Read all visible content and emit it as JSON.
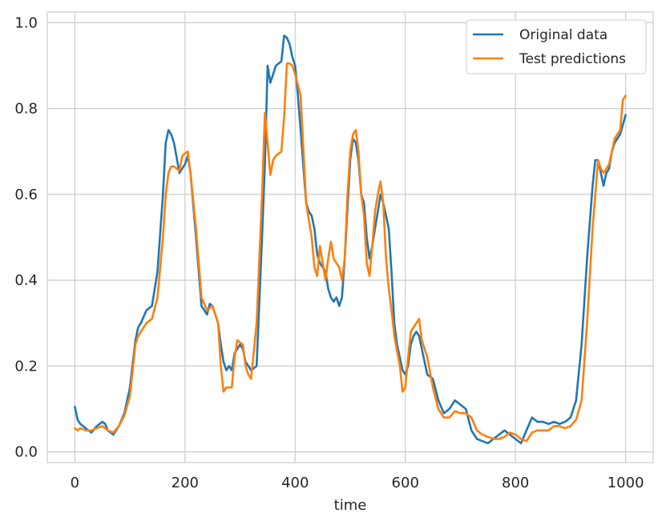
{
  "chart_data": {
    "type": "line",
    "title": "",
    "xlabel": "time",
    "ylabel": "",
    "xlim": [
      -50,
      1050
    ],
    "ylim": [
      -0.025,
      1.025
    ],
    "xticks": [
      0,
      200,
      400,
      600,
      800,
      1000
    ],
    "xtick_labels": [
      "0",
      "200",
      "400",
      "600",
      "800",
      "1000"
    ],
    "yticks": [
      0.0,
      0.2,
      0.4,
      0.6,
      0.8,
      1.0
    ],
    "ytick_labels": [
      "0.0",
      "0.2",
      "0.4",
      "0.6",
      "0.8",
      "1.0"
    ],
    "grid": true,
    "legend_position": "top-right",
    "series": [
      {
        "name": "Original data",
        "color": "#1f77b4",
        "x": [
          0,
          5,
          10,
          20,
          30,
          40,
          50,
          55,
          60,
          70,
          80,
          90,
          100,
          110,
          115,
          120,
          130,
          140,
          150,
          160,
          165,
          170,
          175,
          180,
          190,
          200,
          205,
          210,
          220,
          230,
          240,
          245,
          250,
          260,
          265,
          270,
          275,
          280,
          285,
          290,
          300,
          305,
          310,
          320,
          330,
          340,
          345,
          350,
          355,
          360,
          365,
          375,
          380,
          385,
          390,
          395,
          400,
          405,
          410,
          420,
          425,
          430,
          435,
          440,
          445,
          450,
          455,
          460,
          465,
          470,
          475,
          480,
          485,
          490,
          500,
          505,
          510,
          515,
          520,
          525,
          530,
          535,
          540,
          545,
          550,
          555,
          560,
          565,
          570,
          575,
          580,
          585,
          590,
          595,
          600,
          605,
          610,
          615,
          620,
          625,
          630,
          640,
          650,
          660,
          670,
          680,
          690,
          700,
          710,
          720,
          730,
          740,
          750,
          760,
          770,
          780,
          790,
          800,
          810,
          820,
          830,
          840,
          850,
          860,
          870,
          880,
          890,
          900,
          910,
          920,
          930,
          940,
          945,
          950,
          955,
          960,
          965,
          970,
          975,
          980,
          990,
          1000
        ],
        "y": [
          0.105,
          0.075,
          0.065,
          0.055,
          0.045,
          0.06,
          0.07,
          0.065,
          0.05,
          0.04,
          0.06,
          0.09,
          0.15,
          0.26,
          0.29,
          0.3,
          0.33,
          0.34,
          0.42,
          0.6,
          0.72,
          0.75,
          0.74,
          0.72,
          0.65,
          0.67,
          0.69,
          0.65,
          0.5,
          0.34,
          0.32,
          0.345,
          0.34,
          0.3,
          0.25,
          0.21,
          0.19,
          0.2,
          0.19,
          0.23,
          0.25,
          0.24,
          0.21,
          0.19,
          0.2,
          0.5,
          0.67,
          0.9,
          0.86,
          0.88,
          0.9,
          0.91,
          0.97,
          0.965,
          0.95,
          0.92,
          0.9,
          0.83,
          0.75,
          0.58,
          0.56,
          0.55,
          0.52,
          0.46,
          0.44,
          0.43,
          0.42,
          0.38,
          0.36,
          0.35,
          0.36,
          0.34,
          0.36,
          0.45,
          0.68,
          0.73,
          0.72,
          0.68,
          0.6,
          0.58,
          0.5,
          0.45,
          0.48,
          0.52,
          0.56,
          0.6,
          0.58,
          0.55,
          0.52,
          0.42,
          0.3,
          0.25,
          0.22,
          0.19,
          0.18,
          0.2,
          0.25,
          0.27,
          0.28,
          0.27,
          0.24,
          0.18,
          0.17,
          0.12,
          0.09,
          0.1,
          0.12,
          0.11,
          0.1,
          0.05,
          0.03,
          0.025,
          0.02,
          0.03,
          0.04,
          0.05,
          0.04,
          0.03,
          0.02,
          0.05,
          0.08,
          0.07,
          0.07,
          0.065,
          0.07,
          0.065,
          0.07,
          0.08,
          0.12,
          0.25,
          0.45,
          0.62,
          0.68,
          0.68,
          0.65,
          0.62,
          0.65,
          0.66,
          0.7,
          0.72,
          0.74,
          0.785
        ]
      },
      {
        "name": "Test predictions",
        "color": "#ff7f0e",
        "x": [
          0,
          5,
          10,
          20,
          30,
          40,
          50,
          60,
          70,
          80,
          90,
          100,
          110,
          115,
          120,
          130,
          140,
          150,
          160,
          165,
          170,
          175,
          180,
          190,
          195,
          200,
          205,
          210,
          220,
          230,
          240,
          250,
          260,
          265,
          270,
          275,
          280,
          285,
          290,
          295,
          300,
          305,
          310,
          315,
          320,
          330,
          340,
          345,
          350,
          355,
          360,
          365,
          375,
          380,
          385,
          390,
          395,
          400,
          410,
          420,
          430,
          435,
          440,
          445,
          450,
          455,
          460,
          465,
          470,
          475,
          480,
          485,
          490,
          495,
          500,
          505,
          510,
          515,
          520,
          525,
          530,
          535,
          540,
          545,
          550,
          555,
          560,
          565,
          570,
          575,
          580,
          590,
          595,
          600,
          605,
          610,
          615,
          620,
          625,
          630,
          640,
          650,
          660,
          670,
          680,
          690,
          700,
          710,
          720,
          730,
          740,
          750,
          760,
          770,
          780,
          790,
          800,
          810,
          820,
          830,
          840,
          850,
          860,
          870,
          880,
          890,
          900,
          910,
          920,
          930,
          940,
          945,
          950,
          955,
          960,
          965,
          970,
          975,
          980,
          990,
          995,
          1000
        ],
        "y": [
          0.055,
          0.05,
          0.055,
          0.05,
          0.05,
          0.055,
          0.06,
          0.05,
          0.045,
          0.06,
          0.085,
          0.13,
          0.25,
          0.27,
          0.28,
          0.3,
          0.31,
          0.36,
          0.5,
          0.6,
          0.65,
          0.665,
          0.665,
          0.655,
          0.69,
          0.695,
          0.7,
          0.65,
          0.52,
          0.36,
          0.33,
          0.34,
          0.3,
          0.2,
          0.14,
          0.15,
          0.15,
          0.15,
          0.22,
          0.26,
          0.255,
          0.25,
          0.2,
          0.18,
          0.17,
          0.3,
          0.6,
          0.79,
          0.72,
          0.645,
          0.68,
          0.69,
          0.7,
          0.78,
          0.905,
          0.905,
          0.9,
          0.88,
          0.83,
          0.58,
          0.5,
          0.43,
          0.41,
          0.48,
          0.44,
          0.4,
          0.45,
          0.49,
          0.45,
          0.44,
          0.43,
          0.4,
          0.45,
          0.6,
          0.7,
          0.74,
          0.75,
          0.7,
          0.6,
          0.55,
          0.44,
          0.41,
          0.48,
          0.56,
          0.6,
          0.63,
          0.58,
          0.45,
          0.38,
          0.33,
          0.27,
          0.2,
          0.14,
          0.15,
          0.22,
          0.28,
          0.29,
          0.3,
          0.31,
          0.26,
          0.22,
          0.15,
          0.1,
          0.08,
          0.08,
          0.095,
          0.09,
          0.09,
          0.08,
          0.05,
          0.04,
          0.035,
          0.03,
          0.03,
          0.035,
          0.045,
          0.04,
          0.03,
          0.025,
          0.045,
          0.05,
          0.05,
          0.05,
          0.06,
          0.06,
          0.055,
          0.06,
          0.075,
          0.12,
          0.3,
          0.52,
          0.6,
          0.68,
          0.66,
          0.65,
          0.66,
          0.67,
          0.7,
          0.73,
          0.75,
          0.82,
          0.83
        ]
      }
    ]
  }
}
